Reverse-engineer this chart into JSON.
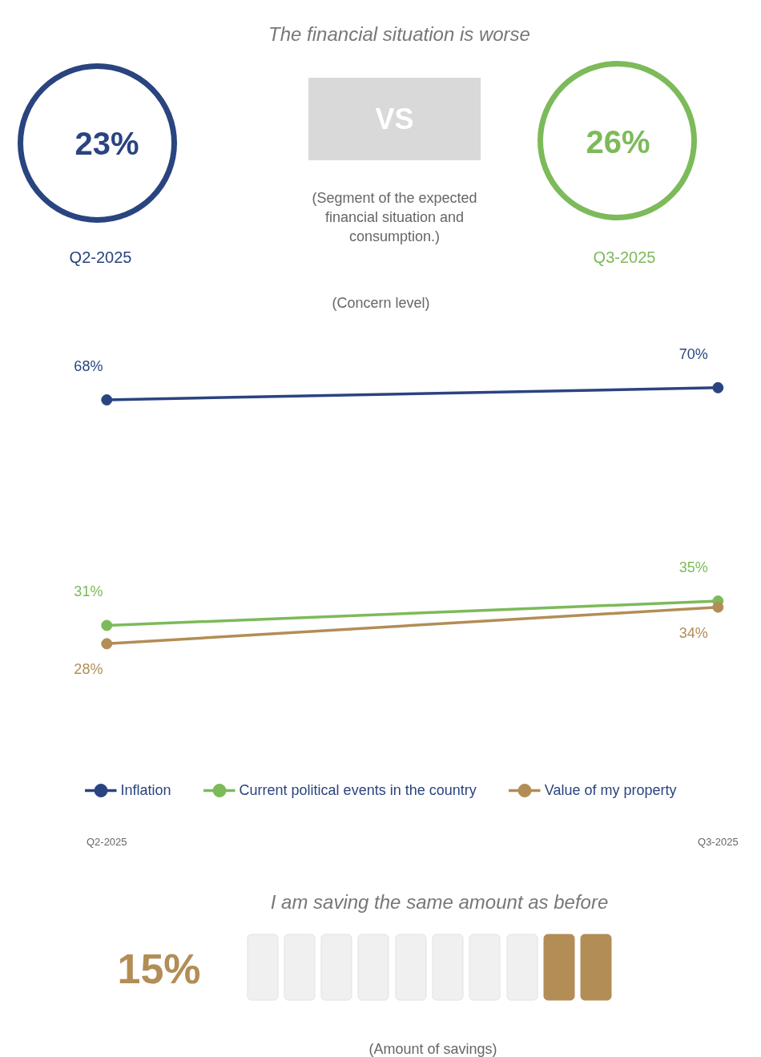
{
  "chart_data": [
    {
      "type": "other",
      "title": "The financial situation is worse",
      "annotations": [
        "23%",
        "Q2-2025",
        "VS",
        "(Segment of the expected financial situation and consumption.)",
        "26%",
        "Q3-2025"
      ]
    },
    {
      "type": "line",
      "subtitle": "(Concern level)",
      "categories": [
        "Q2-2025",
        "Q3-2025"
      ],
      "series": [
        {
          "name": "Inflation",
          "color": "#2a4480",
          "values": [
            68,
            70
          ],
          "value_labels": [
            "68%",
            "70%"
          ]
        },
        {
          "name": "Current political events in the country",
          "color": "#7dba5a",
          "values": [
            31,
            35
          ],
          "value_labels": [
            "31%",
            "35%"
          ]
        },
        {
          "name": "Value of my property",
          "color": "#b38d56",
          "values": [
            28,
            34
          ],
          "value_labels": [
            "28%",
            "34%"
          ]
        }
      ],
      "marker": "circle",
      "line_style": "solid",
      "legend": "bottom",
      "grid": false,
      "tick_labels": "x"
    },
    {
      "type": "other",
      "title": "I am saving the same amount as before",
      "annotations": [
        "15%",
        "(Amount of savings)"
      ]
    }
  ]
}
